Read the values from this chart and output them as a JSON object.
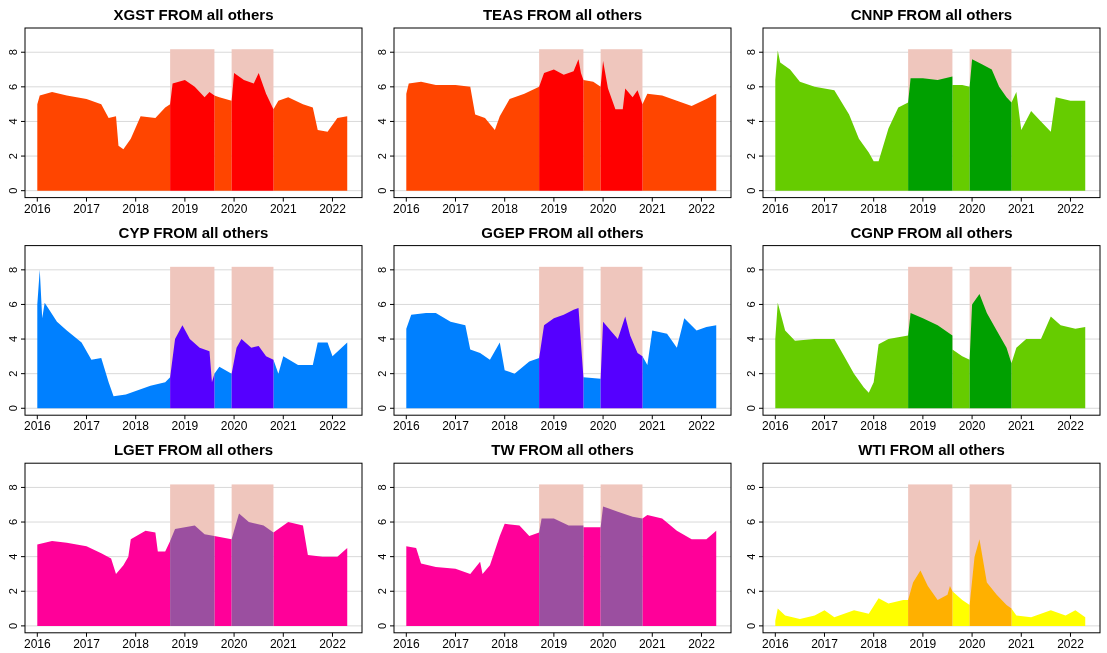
{
  "chart_data": [
    {
      "type": "area",
      "title": "XGST FROM all others",
      "xlim": [
        2015.75,
        2022.6
      ],
      "xticks": [
        2016,
        2017,
        2018,
        2019,
        2020,
        2021,
        2022
      ],
      "ylim": [
        -0.4,
        9.4
      ],
      "yticks": [
        0,
        2,
        4,
        6,
        8
      ],
      "grid": "y",
      "bands": [
        {
          "axis": "x",
          "from": 2018.7,
          "to": 2019.6,
          "color": "#efc6bd"
        },
        {
          "axis": "x",
          "from": 2019.95,
          "to": 2020.8,
          "color": "#efc6bd"
        }
      ],
      "series": [
        {
          "color": "#ff4500",
          "x": [
            2016,
            2016.05,
            2016.3,
            2016.6,
            2017,
            2017.3,
            2017.45,
            2017.6,
            2017.65,
            2017.75,
            2017.9,
            2018.1,
            2018.4,
            2018.6,
            2018.7,
            2019.0,
            2019.6,
            2019.7,
            2019.95,
            2020.4,
            2020.8,
            2020.9,
            2021.1,
            2021.4,
            2021.6,
            2021.7,
            2021.9,
            2022.1,
            2022.3
          ],
          "values": [
            5.0,
            5.5,
            5.7,
            5.5,
            5.3,
            5.0,
            4.2,
            4.3,
            2.6,
            2.4,
            3.0,
            4.3,
            4.2,
            4.8,
            5.0,
            null,
            5.5,
            5.4,
            5.2,
            null,
            4.7,
            5.2,
            5.4,
            5.0,
            4.8,
            3.5,
            3.4,
            4.2,
            4.3
          ]
        },
        {
          "color": "#ff0000",
          "x": [
            2018.7,
            2018.75,
            2019.0,
            2019.2,
            2019.4,
            2019.5,
            2019.6,
            2019.8,
            2019.95,
            2020.0,
            2020.2,
            2020.4,
            2020.5,
            2020.65,
            2020.8
          ],
          "values": [
            5.0,
            6.2,
            6.4,
            6.0,
            5.4,
            5.7,
            5.5,
            null,
            5.2,
            6.8,
            6.4,
            6.2,
            6.8,
            5.6,
            4.7
          ]
        }
      ]
    },
    {
      "type": "area",
      "title": "TEAS FROM all others",
      "xlim": [
        2015.75,
        2022.6
      ],
      "xticks": [
        2016,
        2017,
        2018,
        2019,
        2020,
        2021,
        2022
      ],
      "ylim": [
        -0.4,
        9.4
      ],
      "yticks": [
        0,
        2,
        4,
        6,
        8
      ],
      "grid": "y",
      "bands": [
        {
          "axis": "x",
          "from": 2018.7,
          "to": 2019.6,
          "color": "#efc6bd"
        },
        {
          "axis": "x",
          "from": 2019.95,
          "to": 2020.8,
          "color": "#efc6bd"
        }
      ],
      "series": [
        {
          "color": "#ff4500",
          "x": [
            2016,
            2016.05,
            2016.3,
            2016.6,
            2017,
            2017.3,
            2017.4,
            2017.6,
            2017.8,
            2017.9,
            2018.1,
            2018.4,
            2018.7,
            2019.0,
            2019.6,
            2019.8,
            2019.95,
            2020.4,
            2020.8,
            2020.9,
            2021.2,
            2021.5,
            2021.8,
            2022.1,
            2022.3
          ],
          "values": [
            5.6,
            6.2,
            6.3,
            6.1,
            6.1,
            6.0,
            4.4,
            4.2,
            3.5,
            4.3,
            5.3,
            5.6,
            6.0,
            null,
            6.4,
            6.3,
            6.0,
            null,
            5.0,
            5.6,
            5.5,
            5.2,
            4.9,
            5.3,
            5.6
          ]
        },
        {
          "color": "#ff0000",
          "x": [
            2018.7,
            2018.8,
            2019.0,
            2019.2,
            2019.4,
            2019.5,
            2019.55,
            2019.6,
            2019.8,
            2019.95,
            2020.0,
            2020.1,
            2020.25,
            2020.4,
            2020.45,
            2020.6,
            2020.7,
            2020.8
          ],
          "values": [
            6.0,
            6.8,
            7.0,
            6.7,
            6.9,
            7.6,
            6.8,
            6.4,
            null,
            6.0,
            7.5,
            5.9,
            4.7,
            4.7,
            5.9,
            5.4,
            5.8,
            5.0
          ]
        }
      ]
    },
    {
      "type": "area",
      "title": "CNNP FROM all others",
      "xlim": [
        2015.75,
        2022.6
      ],
      "xticks": [
        2016,
        2017,
        2018,
        2019,
        2020,
        2021,
        2022
      ],
      "ylim": [
        -0.4,
        9.4
      ],
      "yticks": [
        0,
        2,
        4,
        6,
        8
      ],
      "grid": "y",
      "bands": [
        {
          "axis": "x",
          "from": 2018.7,
          "to": 2019.6,
          "color": "#efc6bd"
        },
        {
          "axis": "x",
          "from": 2019.95,
          "to": 2020.8,
          "color": "#efc6bd"
        }
      ],
      "series": [
        {
          "color": "#66cc00",
          "x": [
            2016,
            2016.05,
            2016.1,
            2016.3,
            2016.5,
            2016.8,
            2017.2,
            2017.5,
            2017.7,
            2017.9,
            2018.0,
            2018.1,
            2018.3,
            2018.5,
            2018.7,
            2019.0,
            2019.6,
            2019.8,
            2019.95,
            2020.4,
            2020.8,
            2020.9,
            2021.0,
            2021.2,
            2021.4,
            2021.6,
            2021.7,
            2022.0,
            2022.3
          ],
          "values": [
            6.4,
            8.1,
            7.4,
            7.0,
            6.3,
            6.0,
            5.8,
            4.4,
            3.0,
            2.2,
            1.7,
            1.7,
            3.6,
            4.8,
            5.1,
            null,
            6.1,
            6.1,
            6.0,
            null,
            5.1,
            5.7,
            3.5,
            4.6,
            4.0,
            3.4,
            5.4,
            5.2,
            5.2
          ]
        },
        {
          "color": "#00a000",
          "x": [
            2018.7,
            2018.75,
            2019.0,
            2019.3,
            2019.6,
            2019.8,
            2019.95,
            2020.0,
            2020.2,
            2020.4,
            2020.55,
            2020.7,
            2020.8
          ],
          "values": [
            5.1,
            6.5,
            6.5,
            6.4,
            6.6,
            null,
            6.0,
            7.6,
            7.3,
            7.0,
            6.0,
            5.4,
            5.1
          ]
        }
      ]
    },
    {
      "type": "area",
      "title": "CYP FROM all others",
      "xlim": [
        2015.75,
        2022.6
      ],
      "xticks": [
        2016,
        2017,
        2018,
        2019,
        2020,
        2021,
        2022
      ],
      "ylim": [
        -0.4,
        9.4
      ],
      "yticks": [
        0,
        2,
        4,
        6,
        8
      ],
      "grid": "y",
      "bands": [
        {
          "axis": "x",
          "from": 2018.7,
          "to": 2019.6,
          "color": "#efc6bd"
        },
        {
          "axis": "x",
          "from": 2019.95,
          "to": 2020.8,
          "color": "#efc6bd"
        }
      ],
      "series": [
        {
          "color": "#0080ff",
          "x": [
            2016,
            2016.05,
            2016.1,
            2016.15,
            2016.4,
            2016.6,
            2016.9,
            2017.1,
            2017.3,
            2017.45,
            2017.55,
            2017.8,
            2018.0,
            2018.3,
            2018.6,
            2018.7,
            2019.0,
            2019.6,
            2019.7,
            2019.95,
            2020.4,
            2020.8,
            2020.9,
            2021.0,
            2021.3,
            2021.6,
            2021.7,
            2021.9,
            2022.0,
            2022.3
          ],
          "values": [
            6.0,
            8.0,
            5.2,
            6.1,
            5.0,
            4.5,
            3.8,
            2.8,
            2.9,
            1.5,
            0.7,
            0.8,
            1.0,
            1.3,
            1.5,
            1.8,
            null,
            2.0,
            2.4,
            2.0,
            null,
            2.8,
            2.0,
            3.0,
            2.5,
            2.5,
            3.8,
            3.8,
            3.0,
            3.8
          ]
        },
        {
          "color": "#5500ff",
          "x": [
            2018.7,
            2018.8,
            2018.95,
            2019.1,
            2019.3,
            2019.5,
            2019.55,
            2019.6,
            2019.8,
            2019.95,
            2020.05,
            2020.15,
            2020.35,
            2020.5,
            2020.65,
            2020.8
          ],
          "values": [
            1.8,
            4.0,
            4.8,
            4.0,
            3.5,
            3.3,
            1.5,
            2.0,
            null,
            2.0,
            3.5,
            4.0,
            3.5,
            3.6,
            3.0,
            2.8
          ]
        }
      ]
    },
    {
      "type": "area",
      "title": "GGEP FROM all others",
      "xlim": [
        2015.75,
        2022.6
      ],
      "xticks": [
        2016,
        2017,
        2018,
        2019,
        2020,
        2021,
        2022
      ],
      "ylim": [
        -0.4,
        9.4
      ],
      "yticks": [
        0,
        2,
        4,
        6,
        8
      ],
      "grid": "y",
      "bands": [
        {
          "axis": "x",
          "from": 2018.7,
          "to": 2019.6,
          "color": "#efc6bd"
        },
        {
          "axis": "x",
          "from": 2019.95,
          "to": 2020.8,
          "color": "#efc6bd"
        }
      ],
      "series": [
        {
          "color": "#0080ff",
          "x": [
            2016,
            2016.1,
            2016.4,
            2016.6,
            2016.9,
            2017.2,
            2017.3,
            2017.5,
            2017.7,
            2017.9,
            2018.0,
            2018.2,
            2018.5,
            2018.7,
            2019.0,
            2019.6,
            2019.95,
            2020.4,
            2020.8,
            2020.9,
            2021.0,
            2021.3,
            2021.5,
            2021.65,
            2021.9,
            2022.1,
            2022.3
          ],
          "values": [
            4.6,
            5.4,
            5.5,
            5.5,
            5.0,
            4.8,
            3.4,
            3.2,
            2.8,
            3.8,
            2.2,
            2.0,
            2.7,
            2.9,
            null,
            1.8,
            1.7,
            null,
            3.0,
            2.5,
            4.5,
            4.3,
            3.5,
            5.2,
            4.5,
            4.7,
            4.8
          ]
        },
        {
          "color": "#5500ff",
          "x": [
            2018.7,
            2018.8,
            2019.0,
            2019.2,
            2019.4,
            2019.5,
            2019.6,
            2019.8,
            2019.95,
            2020.0,
            2020.15,
            2020.3,
            2020.45,
            2020.55,
            2020.7,
            2020.8
          ],
          "values": [
            2.9,
            4.8,
            5.2,
            5.4,
            5.7,
            5.8,
            1.8,
            null,
            1.7,
            5.0,
            4.5,
            4.0,
            5.3,
            4.2,
            3.2,
            3.0
          ]
        }
      ]
    },
    {
      "type": "area",
      "title": "CGNP FROM all others",
      "xlim": [
        2015.75,
        2022.6
      ],
      "xticks": [
        2016,
        2017,
        2018,
        2019,
        2020,
        2021,
        2022
      ],
      "ylim": [
        -0.4,
        9.4
      ],
      "yticks": [
        0,
        2,
        4,
        6,
        8
      ],
      "grid": "y",
      "bands": [
        {
          "axis": "x",
          "from": 2018.7,
          "to": 2019.6,
          "color": "#efc6bd"
        },
        {
          "axis": "x",
          "from": 2019.95,
          "to": 2020.8,
          "color": "#efc6bd"
        }
      ],
      "series": [
        {
          "color": "#66cc00",
          "x": [
            2016,
            2016.05,
            2016.2,
            2016.4,
            2016.8,
            2017.2,
            2017.4,
            2017.6,
            2017.8,
            2017.9,
            2018.0,
            2018.1,
            2018.3,
            2018.5,
            2018.7,
            2019.0,
            2019.6,
            2019.8,
            2019.95,
            2020.4,
            2020.8,
            2020.9,
            2021.1,
            2021.4,
            2021.6,
            2021.8,
            2022.1,
            2022.3
          ],
          "values": [
            4.0,
            6.1,
            4.5,
            3.9,
            4.0,
            4.0,
            3.0,
            2.0,
            1.2,
            0.9,
            1.5,
            3.7,
            4.0,
            4.1,
            4.2,
            null,
            3.4,
            3.0,
            2.8,
            null,
            2.6,
            3.5,
            4.0,
            4.0,
            5.3,
            4.8,
            4.6,
            4.7
          ]
        },
        {
          "color": "#00a000",
          "x": [
            2018.7,
            2018.75,
            2019.0,
            2019.3,
            2019.6,
            2019.8,
            2019.95,
            2020.0,
            2020.15,
            2020.3,
            2020.5,
            2020.7,
            2020.8
          ],
          "values": [
            4.2,
            5.5,
            5.2,
            4.8,
            4.2,
            null,
            2.8,
            6.0,
            6.6,
            5.5,
            4.5,
            3.5,
            2.6
          ]
        }
      ]
    },
    {
      "type": "area",
      "title": "LGET FROM all others",
      "xlim": [
        2015.75,
        2022.6
      ],
      "xticks": [
        2016,
        2017,
        2018,
        2019,
        2020,
        2021,
        2022
      ],
      "ylim": [
        -0.4,
        9.4
      ],
      "yticks": [
        0,
        2,
        4,
        6,
        8
      ],
      "grid": "y",
      "bands": [
        {
          "axis": "x",
          "from": 2018.7,
          "to": 2019.6,
          "color": "#efc6bd"
        },
        {
          "axis": "x",
          "from": 2019.95,
          "to": 2020.8,
          "color": "#efc6bd"
        }
      ],
      "series": [
        {
          "color": "#ff0099",
          "x": [
            2016,
            2016.3,
            2016.6,
            2017,
            2017.3,
            2017.5,
            2017.6,
            2017.75,
            2017.85,
            2017.9,
            2018.2,
            2018.4,
            2018.45,
            2018.6,
            2018.7,
            2019.0,
            2019.6,
            2019.95,
            2020.4,
            2020.8,
            2020.9,
            2021.1,
            2021.4,
            2021.5,
            2021.8,
            2022.1,
            2022.3
          ],
          "values": [
            4.7,
            4.9,
            4.8,
            4.6,
            4.2,
            3.9,
            3.0,
            3.5,
            4.0,
            5.0,
            5.5,
            5.4,
            4.3,
            4.3,
            4.9,
            null,
            5.2,
            5.0,
            null,
            5.4,
            5.6,
            6.0,
            5.8,
            4.1,
            4.0,
            4.0,
            4.5
          ]
        },
        {
          "color": "#9b4fa0",
          "x": [
            2018.7,
            2018.8,
            2019.2,
            2019.4,
            2019.6,
            2019.8,
            2019.95,
            2020.1,
            2020.3,
            2020.6,
            2020.8
          ],
          "values": [
            4.9,
            5.6,
            5.8,
            5.3,
            5.2,
            null,
            5.0,
            6.5,
            6.0,
            5.8,
            5.4
          ]
        }
      ]
    },
    {
      "type": "area",
      "title": "TW FROM all others",
      "xlim": [
        2015.75,
        2022.6
      ],
      "xticks": [
        2016,
        2017,
        2018,
        2019,
        2020,
        2021,
        2022
      ],
      "ylim": [
        -0.4,
        9.4
      ],
      "yticks": [
        0,
        2,
        4,
        6,
        8
      ],
      "grid": "y",
      "bands": [
        {
          "axis": "x",
          "from": 2018.7,
          "to": 2019.6,
          "color": "#efc6bd"
        },
        {
          "axis": "x",
          "from": 2019.95,
          "to": 2020.8,
          "color": "#efc6bd"
        }
      ],
      "series": [
        {
          "color": "#ff0099",
          "x": [
            2016,
            2016.2,
            2016.3,
            2016.6,
            2017,
            2017.3,
            2017.5,
            2017.55,
            2017.7,
            2017.9,
            2018.0,
            2018.3,
            2018.5,
            2018.7,
            2019.0,
            2019.6,
            2019.95,
            2020.4,
            2020.8,
            2020.9,
            2021.2,
            2021.5,
            2021.8,
            2022.1,
            2022.3
          ],
          "values": [
            4.6,
            4.5,
            3.6,
            3.4,
            3.3,
            3.0,
            3.7,
            3.0,
            3.5,
            5.2,
            5.9,
            5.8,
            5.2,
            5.4,
            null,
            5.7,
            5.7,
            null,
            6.2,
            6.4,
            6.2,
            5.5,
            5.0,
            5.0,
            5.5
          ]
        },
        {
          "color": "#9b4fa0",
          "x": [
            2018.7,
            2018.75,
            2019.0,
            2019.3,
            2019.6,
            2019.8,
            2019.95,
            2020.0,
            2020.3,
            2020.6,
            2020.8
          ],
          "values": [
            5.4,
            6.2,
            6.2,
            5.8,
            5.8,
            null,
            5.7,
            6.9,
            6.6,
            6.3,
            6.2
          ]
        }
      ]
    },
    {
      "type": "area",
      "title": "WTI FROM all others",
      "xlim": [
        2015.75,
        2022.6
      ],
      "xticks": [
        2016,
        2017,
        2018,
        2019,
        2020,
        2021,
        2022
      ],
      "ylim": [
        -0.4,
        9.4
      ],
      "yticks": [
        0,
        2,
        4,
        6,
        8
      ],
      "grid": "y",
      "bands": [
        {
          "axis": "x",
          "from": 2018.7,
          "to": 2019.6,
          "color": "#efc6bd"
        },
        {
          "axis": "x",
          "from": 2019.95,
          "to": 2020.8,
          "color": "#efc6bd"
        }
      ],
      "series": [
        {
          "color": "#ffff00",
          "x": [
            2016,
            2016.05,
            2016.2,
            2016.5,
            2016.8,
            2017.0,
            2017.2,
            2017.6,
            2017.9,
            2018.1,
            2018.3,
            2018.6,
            2018.7,
            2019.0,
            2019.6,
            2019.8,
            2019.95,
            2020.4,
            2020.8,
            2020.9,
            2021.2,
            2021.4,
            2021.6,
            2021.9,
            2022.1,
            2022.3
          ],
          "values": [
            0.3,
            1.0,
            0.6,
            0.4,
            0.6,
            0.9,
            0.5,
            0.9,
            0.7,
            1.6,
            1.3,
            1.5,
            1.5,
            null,
            2.0,
            1.5,
            1.2,
            null,
            1.0,
            0.6,
            0.5,
            0.7,
            0.9,
            0.6,
            0.9,
            0.5
          ]
        },
        {
          "color": "#ffb000",
          "x": [
            2018.7,
            2018.8,
            2018.95,
            2019.1,
            2019.3,
            2019.5,
            2019.55,
            2019.6,
            2019.8,
            2019.95,
            2020.05,
            2020.15,
            2020.3,
            2020.5,
            2020.7,
            2020.8
          ],
          "values": [
            1.5,
            2.5,
            3.2,
            2.3,
            1.5,
            1.8,
            2.3,
            2.0,
            null,
            1.2,
            4.0,
            5.0,
            2.5,
            1.8,
            1.2,
            1.0
          ]
        }
      ]
    }
  ]
}
